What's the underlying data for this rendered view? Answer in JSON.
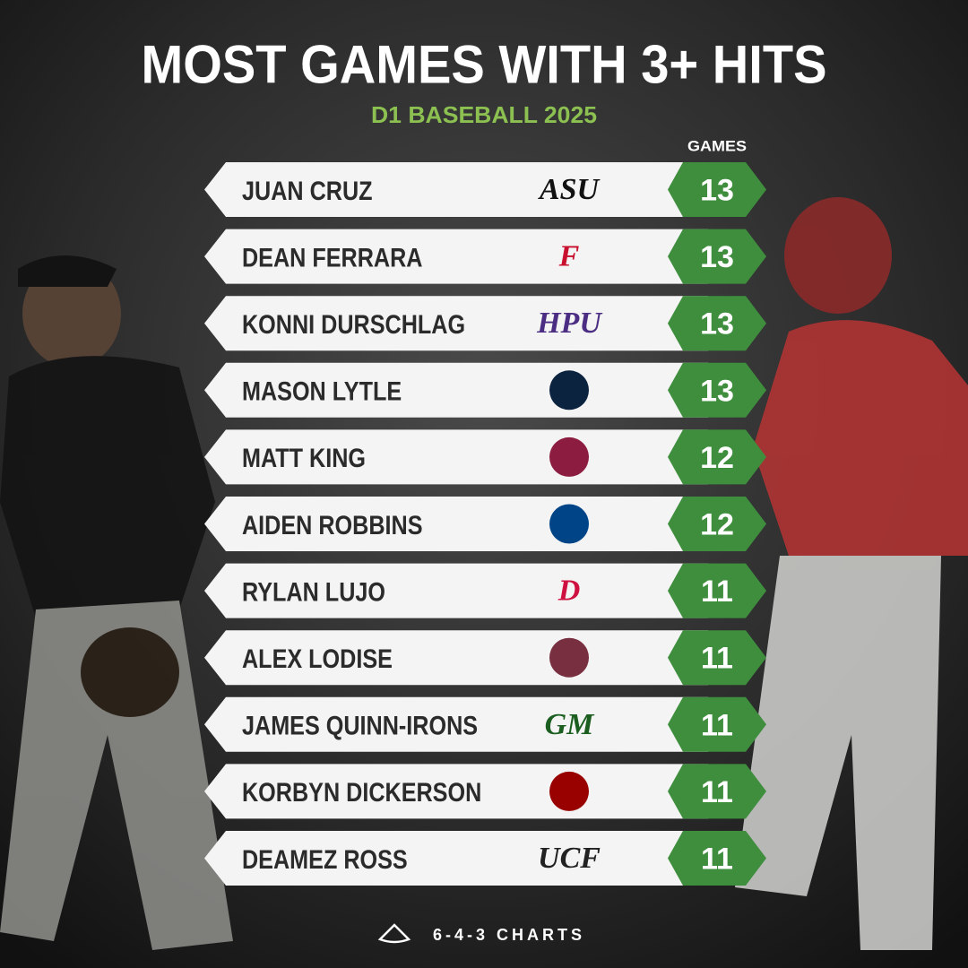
{
  "header": {
    "title": "MOST GAMES WITH 3+ HITS",
    "subtitle": "D1 BASEBALL 2025",
    "column_header": "GAMES"
  },
  "rows": [
    {
      "name": "JUAN CRUZ",
      "logo": "ASU",
      "games": "13"
    },
    {
      "name": "DEAN FERRARA",
      "logo": "F",
      "games": "13"
    },
    {
      "name": "KONNI DURSCHLAG",
      "logo": "HPU",
      "games": "13"
    },
    {
      "name": "MASON LYTLE",
      "logo": "",
      "games": "13"
    },
    {
      "name": "MATT KING",
      "logo": "",
      "games": "12"
    },
    {
      "name": "AIDEN ROBBINS",
      "logo": "",
      "games": "12"
    },
    {
      "name": "RYLAN LUJO",
      "logo": "D",
      "games": "11"
    },
    {
      "name": "ALEX LODISE",
      "logo": "",
      "games": "11"
    },
    {
      "name": "JAMES QUINN-IRONS",
      "logo": "GM",
      "games": "11"
    },
    {
      "name": "KORBYN DICKERSON",
      "logo": "",
      "games": "11"
    },
    {
      "name": "DEAMEZ ROSS",
      "logo": "UCF",
      "games": "11"
    }
  ],
  "footer": "6-4-3 CHARTS"
}
